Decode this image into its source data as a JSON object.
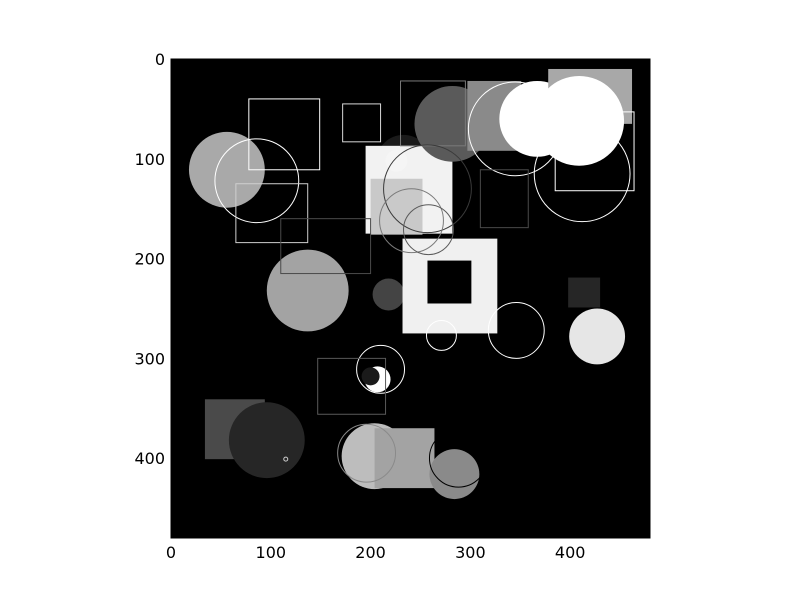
{
  "chart_data": {
    "type": "heatmap",
    "title": "",
    "xlabel": "",
    "ylabel": "",
    "xlim": [
      0,
      480
    ],
    "ylim": [
      480,
      0
    ],
    "y_axis_inverted": true,
    "grid": false,
    "legend": "none",
    "colormap": "gray",
    "background_value": 0,
    "xticks": [
      0,
      100,
      200,
      300,
      400
    ],
    "yticks": [
      0,
      100,
      200,
      300,
      400
    ],
    "xtick_labels": [
      "0",
      "100",
      "200",
      "300",
      "400"
    ],
    "ytick_labels": [
      "0",
      "100",
      "200",
      "300",
      "400"
    ],
    "filled_shapes": [
      {
        "kind": "circle",
        "cx": 56,
        "cy": 111,
        "r": 38,
        "color": "#a9a9a9"
      },
      {
        "kind": "rect",
        "x": 34,
        "y": 341,
        "w": 60,
        "h": 60,
        "color": "#4a4a4a"
      },
      {
        "kind": "circle",
        "cx": 96,
        "cy": 382,
        "r": 38,
        "color": "#262626"
      },
      {
        "kind": "circle",
        "cx": 233,
        "cy": 103,
        "r": 27,
        "color": "#1a1a1a"
      },
      {
        "kind": "rect",
        "x": 195,
        "y": 87,
        "w": 87,
        "h": 88,
        "color": "#f2f2f2"
      },
      {
        "kind": "rect",
        "x": 200,
        "y": 120,
        "w": 52,
        "h": 56,
        "color": "#c9c9c9"
      },
      {
        "kind": "circle",
        "cx": 226,
        "cy": 102,
        "r": 11,
        "color": "#f5f5f5"
      },
      {
        "kind": "circle",
        "cx": 282,
        "cy": 65,
        "r": 38,
        "color": "#5a5a5a"
      },
      {
        "kind": "rect",
        "x": 297,
        "y": 22,
        "w": 54,
        "h": 70,
        "color": "#8a8a8a"
      },
      {
        "kind": "circle",
        "cx": 367,
        "cy": 60,
        "r": 38,
        "color": "#ffffff"
      },
      {
        "kind": "rect",
        "x": 378,
        "y": 10,
        "w": 84,
        "h": 55,
        "color": "#a8a8a8"
      },
      {
        "kind": "circle",
        "cx": 409,
        "cy": 62,
        "r": 45,
        "color": "#ffffff"
      },
      {
        "kind": "circle",
        "cx": 137,
        "cy": 232,
        "r": 41,
        "color": "#a3a3a3"
      },
      {
        "kind": "circle",
        "cx": 218,
        "cy": 236,
        "r": 16,
        "color": "#444444"
      },
      {
        "kind": "rect",
        "x": 232,
        "y": 180,
        "w": 95,
        "h": 95,
        "color": "#f0f0f0"
      },
      {
        "kind": "rect",
        "x": 257,
        "y": 202,
        "w": 44,
        "h": 43,
        "color": "#000000"
      },
      {
        "kind": "rect",
        "x": 398,
        "y": 219,
        "w": 32,
        "h": 30,
        "color": "#262626"
      },
      {
        "kind": "circle",
        "cx": 427,
        "cy": 278,
        "r": 28,
        "color": "#e6e6e6"
      },
      {
        "kind": "circle",
        "cx": 207,
        "cy": 321,
        "r": 13,
        "color": "#ffffff"
      },
      {
        "kind": "circle",
        "cx": 200,
        "cy": 318,
        "r": 9,
        "color": "#1a1a1a"
      },
      {
        "kind": "circle",
        "cx": 204,
        "cy": 398,
        "r": 33,
        "color": "#bdbdbd"
      },
      {
        "kind": "rect",
        "x": 204,
        "y": 370,
        "w": 60,
        "h": 60,
        "color": "#a3a3a3"
      },
      {
        "kind": "circle",
        "cx": 284,
        "cy": 416,
        "r": 25,
        "color": "#8a8a8a"
      }
    ],
    "outline_shapes": [
      {
        "kind": "rect",
        "x": 78,
        "y": 40,
        "w": 71,
        "h": 71,
        "color": "#ffffff"
      },
      {
        "kind": "circle",
        "cx": 86,
        "cy": 122,
        "r": 42,
        "color": "#ffffff"
      },
      {
        "kind": "rect",
        "x": 65,
        "y": 125,
        "w": 72,
        "h": 59,
        "color": "#cfcfcf"
      },
      {
        "kind": "rect",
        "x": 172,
        "y": 45,
        "w": 38,
        "h": 38,
        "color": "#d9d9d9"
      },
      {
        "kind": "rect",
        "x": 230,
        "y": 22,
        "w": 65,
        "h": 65,
        "color": "#7a7a7a"
      },
      {
        "kind": "circle",
        "cx": 345,
        "cy": 70,
        "r": 47,
        "color": "#ffffff"
      },
      {
        "kind": "circle",
        "cx": 412,
        "cy": 115,
        "r": 48,
        "color": "#ffffff"
      },
      {
        "kind": "rect",
        "x": 385,
        "y": 53,
        "w": 79,
        "h": 79,
        "color": "#ffffff"
      },
      {
        "kind": "circle",
        "cx": 257,
        "cy": 130,
        "r": 44,
        "color": "#3a3a3a"
      },
      {
        "kind": "circle",
        "cx": 241,
        "cy": 162,
        "r": 32,
        "color": "#7a7a7a"
      },
      {
        "kind": "circle",
        "cx": 258,
        "cy": 171,
        "r": 25,
        "color": "#5a5a5a"
      },
      {
        "kind": "rect",
        "x": 310,
        "y": 111,
        "w": 48,
        "h": 58,
        "color": "#4a4a4a"
      },
      {
        "kind": "circle",
        "cx": 346,
        "cy": 272,
        "r": 28,
        "color": "#ffffff"
      },
      {
        "kind": "circle",
        "cx": 271,
        "cy": 277,
        "r": 15,
        "color": "#ffffff"
      },
      {
        "kind": "circle",
        "cx": 210,
        "cy": 311,
        "r": 24,
        "color": "#ffffff"
      },
      {
        "kind": "rect",
        "x": 147,
        "y": 300,
        "w": 68,
        "h": 56,
        "color": "#5a5a5a"
      },
      {
        "kind": "circle",
        "cx": 196,
        "cy": 395,
        "r": 29,
        "color": "#8a8a8a"
      },
      {
        "kind": "circle",
        "cx": 288,
        "cy": 400,
        "r": 29,
        "color": "#000000"
      },
      {
        "kind": "circle",
        "cx": 115,
        "cy": 401,
        "r": 2,
        "color": "#cfcfcf"
      },
      {
        "kind": "rect",
        "x": 110,
        "y": 160,
        "w": 90,
        "h": 55,
        "color": "#4a4a4a"
      }
    ]
  }
}
